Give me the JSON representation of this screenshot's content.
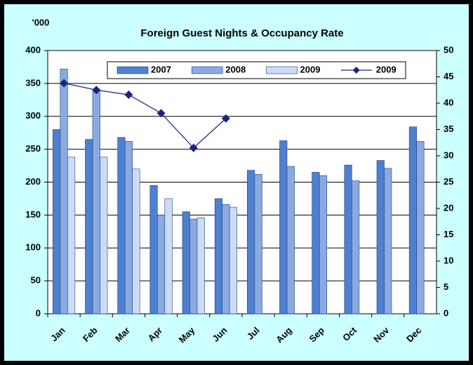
{
  "chart_data": {
    "type": "bar",
    "title": "Foreign Guest Nights & Occupancy Rate",
    "y_unit_label": "'000",
    "categories": [
      "Jan",
      "Feb",
      "Mar",
      "Apr",
      "May",
      "Jun",
      "Jul",
      "Aug",
      "Sep",
      "Oct",
      "Nov",
      "Dec"
    ],
    "series": [
      {
        "name": "2007",
        "type": "bar",
        "color": "#4f7fcf",
        "values": [
          280,
          265,
          268,
          195,
          155,
          175,
          218,
          263,
          215,
          226,
          233,
          284
        ]
      },
      {
        "name": "2008",
        "type": "bar",
        "color": "#8aaae2",
        "values": [
          372,
          338,
          262,
          150,
          144,
          166,
          212,
          224,
          210,
          202,
          221,
          262
        ]
      },
      {
        "name": "2009",
        "type": "bar",
        "color": "#cddbf5",
        "values": [
          238,
          238,
          220,
          175,
          146,
          162,
          null,
          null,
          null,
          null,
          null,
          null
        ]
      },
      {
        "name": "2009",
        "type": "line",
        "axis": "y2",
        "color": "#1a237e",
        "values": [
          43.8,
          42.5,
          41.6,
          38.1,
          31.5,
          37.1,
          null,
          null,
          null,
          null,
          null,
          null
        ]
      }
    ],
    "ylim": [
      0,
      400
    ],
    "yticks": [
      0,
      50,
      100,
      150,
      200,
      250,
      300,
      350,
      400
    ],
    "y2lim": [
      0,
      50
    ],
    "y2ticks": [
      0,
      5,
      10,
      15,
      20,
      25,
      30,
      35,
      40,
      45,
      50
    ],
    "grid": true,
    "legend": "top"
  }
}
